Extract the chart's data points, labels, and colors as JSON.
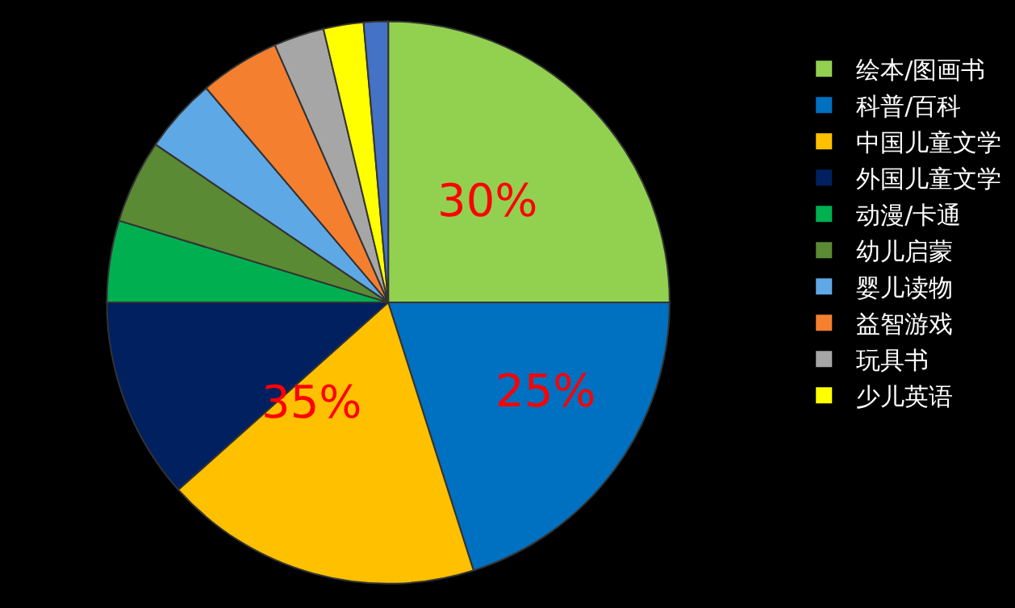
{
  "chart_data": {
    "type": "pie",
    "categories": [
      "绘本/图画书",
      "科普/百科",
      "中国儿童文学",
      "外国儿童文学",
      "动漫/卡通",
      "幼儿启蒙",
      "婴儿读物",
      "益智游戏",
      "玩具书",
      "少儿英语",
      null
    ],
    "values": [
      25,
      20.1,
      18.3,
      11.6,
      4.7,
      4.8,
      4.3,
      4.6,
      2.9,
      2.3,
      1.4
    ],
    "colors": [
      "#92d050",
      "#0070c0",
      "#ffc000",
      "#002060",
      "#00b050",
      "#5a8a34",
      "#5fa8e6",
      "#f47f2f",
      "#a6a6a6",
      "#ffff00",
      "#4472c4"
    ],
    "annotations": [
      "30%",
      "25%",
      "35%"
    ],
    "legend": "right"
  }
}
